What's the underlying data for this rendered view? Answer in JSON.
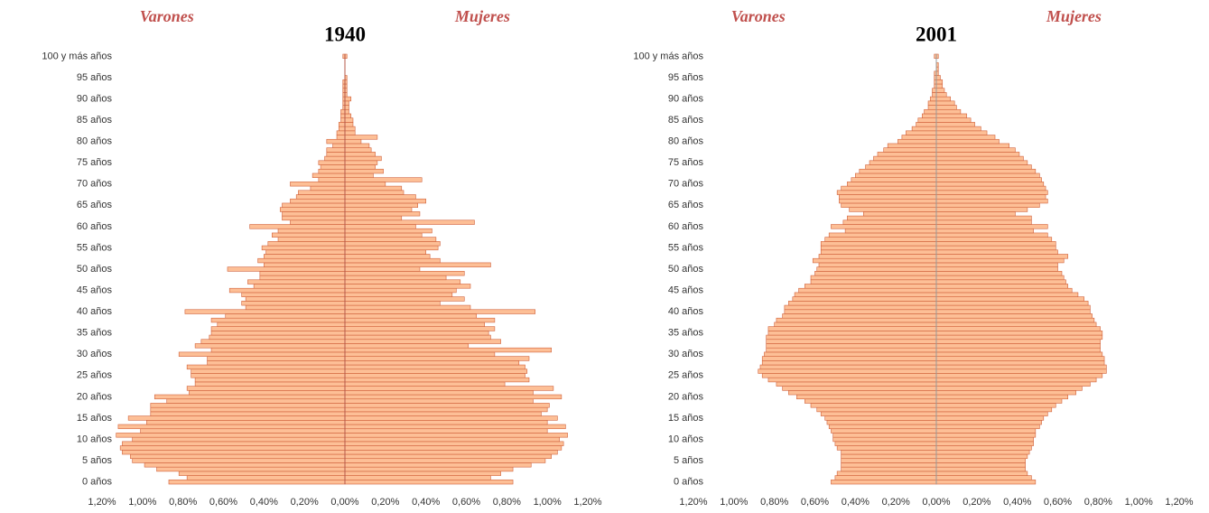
{
  "chart_data": [
    {
      "type": "bar",
      "orientation": "horizontal",
      "title": "1940",
      "categories": [
        "0 años",
        null,
        null,
        null,
        null,
        "5 años",
        null,
        null,
        null,
        null,
        "10 años",
        null,
        null,
        null,
        null,
        "15 años",
        null,
        null,
        null,
        null,
        "20 años",
        null,
        null,
        null,
        null,
        "25 años",
        null,
        null,
        null,
        null,
        "30 años",
        null,
        null,
        null,
        null,
        "35 años",
        null,
        null,
        null,
        null,
        "40 años",
        null,
        null,
        null,
        null,
        "45 años",
        null,
        null,
        null,
        null,
        "50 años",
        null,
        null,
        null,
        null,
        "55 años",
        null,
        null,
        null,
        null,
        "60 años",
        null,
        null,
        null,
        null,
        "65 años",
        null,
        null,
        null,
        null,
        "70 años",
        null,
        null,
        null,
        null,
        "75 años",
        null,
        null,
        null,
        null,
        "80 años",
        null,
        null,
        null,
        null,
        "85 años",
        null,
        null,
        null,
        null,
        "90 años",
        null,
        null,
        null,
        null,
        "95 años",
        null,
        null,
        null,
        null,
        "100 y más años"
      ],
      "series": [
        {
          "name": "Varones",
          "color": "#fdbf96",
          "values": [
            -0.87,
            -0.78,
            -0.82,
            -0.93,
            -0.99,
            -1.05,
            -1.06,
            -1.1,
            -1.11,
            -1.1,
            -1.05,
            -1.13,
            -1.01,
            -1.12,
            -0.98,
            -1.07,
            -0.96,
            -0.96,
            -0.96,
            -0.88,
            -0.94,
            -0.77,
            -0.78,
            -0.74,
            -0.74,
            -0.76,
            -0.76,
            -0.78,
            -0.68,
            -0.68,
            -0.82,
            -0.66,
            -0.74,
            -0.71,
            -0.67,
            -0.66,
            -0.66,
            -0.63,
            -0.66,
            -0.59,
            -0.79,
            -0.49,
            -0.51,
            -0.49,
            -0.51,
            -0.57,
            -0.45,
            -0.48,
            -0.42,
            -0.42,
            -0.58,
            -0.4,
            -0.43,
            -0.4,
            -0.39,
            -0.41,
            -0.38,
            -0.33,
            -0.36,
            -0.33,
            -0.47,
            -0.27,
            -0.31,
            -0.31,
            -0.32,
            -0.31,
            -0.27,
            -0.24,
            -0.23,
            -0.17,
            -0.27,
            -0.13,
            -0.16,
            -0.13,
            -0.12,
            -0.13,
            -0.1,
            -0.09,
            -0.09,
            -0.06,
            -0.09,
            -0.04,
            -0.04,
            -0.03,
            -0.03,
            -0.02,
            -0.02,
            -0.02,
            -0.01,
            -0.01,
            -0.01,
            -0.01,
            -0.01,
            -0.01,
            -0.01,
            0,
            0,
            0,
            0,
            0,
            -0.01
          ]
        },
        {
          "name": "Mujeres",
          "color": "#fdbf96",
          "values": [
            0.83,
            0.72,
            0.77,
            0.83,
            0.92,
            0.99,
            1.02,
            1.05,
            1.07,
            1.08,
            1.06,
            1.1,
            1.0,
            1.09,
            1.0,
            1.05,
            0.97,
            1.0,
            1.01,
            0.93,
            1.07,
            0.93,
            1.03,
            0.79,
            0.91,
            0.89,
            0.9,
            0.89,
            0.86,
            0.91,
            0.74,
            1.02,
            0.61,
            0.77,
            0.72,
            0.71,
            0.74,
            0.69,
            0.74,
            0.65,
            0.94,
            0.62,
            0.47,
            0.59,
            0.53,
            0.55,
            0.62,
            0.57,
            0.5,
            0.59,
            0.37,
            0.72,
            0.47,
            0.42,
            0.4,
            0.46,
            0.47,
            0.45,
            0.38,
            0.43,
            0.35,
            0.64,
            0.28,
            0.37,
            0.33,
            0.36,
            0.4,
            0.35,
            0.29,
            0.28,
            0.2,
            0.38,
            0.14,
            0.19,
            0.15,
            0.16,
            0.18,
            0.15,
            0.13,
            0.12,
            0.08,
            0.16,
            0.05,
            0.05,
            0.04,
            0.04,
            0.03,
            0.02,
            0.02,
            0.02,
            0.03,
            0.01,
            0.01,
            0.01,
            0.01,
            0.01,
            0,
            0,
            0,
            0,
            0.01
          ]
        }
      ],
      "xlim": [
        -1.2,
        1.2
      ],
      "xticks": [
        {
          "value": -1.2,
          "label": "1,20%"
        },
        {
          "value": -1.0,
          "label": "1,00%"
        },
        {
          "value": -0.8,
          "label": "0,80%"
        },
        {
          "value": -0.6,
          "label": "0,60%"
        },
        {
          "value": -0.4,
          "label": "0,40%"
        },
        {
          "value": -0.2,
          "label": "0,20%"
        },
        {
          "value": 0,
          "label": "0,00%"
        },
        {
          "value": 0.2,
          "label": "0,20%"
        },
        {
          "value": 0.4,
          "label": "0,40%"
        },
        {
          "value": 0.6,
          "label": "0,60%"
        },
        {
          "value": 0.8,
          "label": "0,80%"
        },
        {
          "value": 1.0,
          "label": "1,00%"
        },
        {
          "value": 1.2,
          "label": "1,20%"
        }
      ]
    },
    {
      "type": "bar",
      "orientation": "horizontal",
      "title": "2001",
      "categories": [
        "0 años",
        null,
        null,
        null,
        null,
        "5 años",
        null,
        null,
        null,
        null,
        "10 años",
        null,
        null,
        null,
        null,
        "15 años",
        null,
        null,
        null,
        null,
        "20 años",
        null,
        null,
        null,
        null,
        "25 años",
        null,
        null,
        null,
        null,
        "30 años",
        null,
        null,
        null,
        null,
        "35 años",
        null,
        null,
        null,
        null,
        "40 años",
        null,
        null,
        null,
        null,
        "45 años",
        null,
        null,
        null,
        null,
        "50 años",
        null,
        null,
        null,
        null,
        "55 años",
        null,
        null,
        null,
        null,
        "60 años",
        null,
        null,
        null,
        null,
        "65 años",
        null,
        null,
        null,
        null,
        "70 años",
        null,
        null,
        null,
        null,
        "75 años",
        null,
        null,
        null,
        null,
        "80 años",
        null,
        null,
        null,
        null,
        "85 años",
        null,
        null,
        null,
        null,
        "90 años",
        null,
        null,
        null,
        null,
        "95 años",
        null,
        null,
        null,
        null,
        "100 y más años"
      ],
      "series": [
        {
          "name": "Varones",
          "color": "#fdbf96",
          "values": [
            -0.52,
            -0.5,
            -0.49,
            -0.47,
            -0.47,
            -0.47,
            -0.47,
            -0.47,
            -0.49,
            -0.5,
            -0.51,
            -0.51,
            -0.52,
            -0.53,
            -0.54,
            -0.55,
            -0.57,
            -0.59,
            -0.62,
            -0.65,
            -0.69,
            -0.73,
            -0.76,
            -0.79,
            -0.83,
            -0.86,
            -0.88,
            -0.87,
            -0.86,
            -0.86,
            -0.85,
            -0.84,
            -0.84,
            -0.84,
            -0.84,
            -0.83,
            -0.83,
            -0.8,
            -0.79,
            -0.76,
            -0.75,
            -0.75,
            -0.73,
            -0.71,
            -0.7,
            -0.68,
            -0.65,
            -0.62,
            -0.62,
            -0.6,
            -0.59,
            -0.58,
            -0.61,
            -0.58,
            -0.57,
            -0.57,
            -0.57,
            -0.55,
            -0.53,
            -0.45,
            -0.52,
            -0.46,
            -0.44,
            -0.36,
            -0.43,
            -0.47,
            -0.48,
            -0.48,
            -0.49,
            -0.47,
            -0.44,
            -0.42,
            -0.4,
            -0.38,
            -0.35,
            -0.33,
            -0.31,
            -0.29,
            -0.26,
            -0.24,
            -0.19,
            -0.17,
            -0.15,
            -0.12,
            -0.1,
            -0.09,
            -0.07,
            -0.06,
            -0.04,
            -0.04,
            -0.03,
            -0.02,
            -0.02,
            -0.01,
            -0.01,
            -0.01,
            -0.01,
            0,
            0,
            0,
            -0.01
          ]
        },
        {
          "name": "Mujeres",
          "color": "#fdbf96",
          "values": [
            0.49,
            0.47,
            0.45,
            0.44,
            0.44,
            0.44,
            0.45,
            0.46,
            0.47,
            0.48,
            0.48,
            0.49,
            0.49,
            0.51,
            0.52,
            0.53,
            0.55,
            0.57,
            0.59,
            0.62,
            0.65,
            0.69,
            0.72,
            0.76,
            0.79,
            0.82,
            0.84,
            0.84,
            0.83,
            0.83,
            0.82,
            0.81,
            0.81,
            0.81,
            0.82,
            0.82,
            0.81,
            0.79,
            0.78,
            0.77,
            0.76,
            0.76,
            0.75,
            0.73,
            0.7,
            0.67,
            0.65,
            0.64,
            0.63,
            0.62,
            0.6,
            0.6,
            0.63,
            0.65,
            0.6,
            0.59,
            0.59,
            0.57,
            0.55,
            0.48,
            0.55,
            0.47,
            0.47,
            0.39,
            0.45,
            0.51,
            0.55,
            0.54,
            0.55,
            0.54,
            0.53,
            0.52,
            0.51,
            0.49,
            0.47,
            0.45,
            0.43,
            0.41,
            0.39,
            0.36,
            0.31,
            0.29,
            0.25,
            0.22,
            0.19,
            0.17,
            0.15,
            0.12,
            0.1,
            0.09,
            0.07,
            0.05,
            0.04,
            0.03,
            0.03,
            0.02,
            0.01,
            0.01,
            0.01,
            0,
            0.01
          ]
        }
      ],
      "xlim": [
        -1.2,
        1.2
      ],
      "xticks": [
        {
          "value": -1.2,
          "label": "1,20%"
        },
        {
          "value": -1.0,
          "label": "1,00%"
        },
        {
          "value": -0.8,
          "label": "0,80%"
        },
        {
          "value": -0.6,
          "label": "0,60%"
        },
        {
          "value": -0.4,
          "label": "0,40%"
        },
        {
          "value": -0.2,
          "label": "0,20%"
        },
        {
          "value": 0,
          "label": "0,00%"
        },
        {
          "value": 0.2,
          "label": "0,20%"
        },
        {
          "value": 0.4,
          "label": "0,40%"
        },
        {
          "value": 0.6,
          "label": "0,60%"
        },
        {
          "value": 0.8,
          "label": "0,80%"
        },
        {
          "value": 1.0,
          "label": "1,00%"
        },
        {
          "value": 1.2,
          "label": "1,20%"
        }
      ]
    }
  ]
}
